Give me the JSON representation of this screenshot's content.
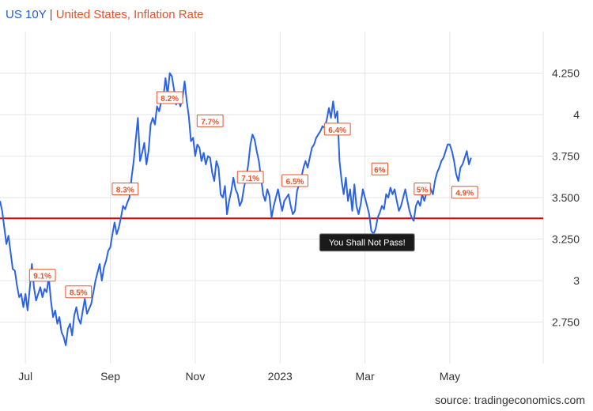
{
  "header": {
    "series_label": "US 10Y",
    "separator": "|",
    "compare_label": "United States, Inflation Rate"
  },
  "footer": {
    "source": "source: tradingeconomics.com"
  },
  "colors": {
    "line": "#2a62e8",
    "threshold": "#dd0000",
    "label_text": "#e8502a",
    "label_border": "#e8502a",
    "annotation_bg": "#1a1a1a",
    "grid": "#e6e6e6"
  },
  "chart_data": {
    "type": "line",
    "title": "US 10Y | United States, Inflation Rate",
    "x_ticks": [
      {
        "label": "Jul",
        "x": 6.5
      },
      {
        "label": "Sep",
        "x": 8.5
      },
      {
        "label": "Nov",
        "x": 10.5
      },
      {
        "label": "2023",
        "x": 12.5
      },
      {
        "label": "Mar",
        "x": 14.5
      },
      {
        "label": "May",
        "x": 16.5
      }
    ],
    "xlim": [
      5.9,
      18.7
    ],
    "ylim": [
      2.5,
      4.5
    ],
    "y_ticks": [
      "4.250",
      "4",
      "3.750",
      "3.500",
      "3.250",
      "3",
      "2.750"
    ],
    "threshold": 3.375,
    "annotation": {
      "text": "You Shall Not Pass!",
      "x": 14.55,
      "y": 3.23
    },
    "inflation_labels": [
      {
        "text": "9.1%",
        "x": 6.9,
        "y": 3.03
      },
      {
        "text": "8.5%",
        "x": 7.75,
        "y": 2.93
      },
      {
        "text": "8.3%",
        "x": 8.85,
        "y": 3.55
      },
      {
        "text": "8.2%",
        "x": 9.9,
        "y": 4.1
      },
      {
        "text": "7.7%",
        "x": 10.85,
        "y": 3.96
      },
      {
        "text": "7.1%",
        "x": 11.8,
        "y": 3.62
      },
      {
        "text": "6.5%",
        "x": 12.85,
        "y": 3.6
      },
      {
        "text": "6.4%",
        "x": 13.85,
        "y": 3.91
      },
      {
        "text": "6%",
        "x": 14.85,
        "y": 3.67
      },
      {
        "text": "5%",
        "x": 15.85,
        "y": 3.55
      },
      {
        "text": "4.9%",
        "x": 16.85,
        "y": 3.53
      }
    ],
    "series": [
      {
        "name": "US 10Y",
        "points": [
          [
            5.9,
            3.48
          ],
          [
            5.95,
            3.42
          ],
          [
            6.0,
            3.32
          ],
          [
            6.05,
            3.22
          ],
          [
            6.1,
            3.27
          ],
          [
            6.15,
            3.17
          ],
          [
            6.2,
            3.07
          ],
          [
            6.25,
            3.06
          ],
          [
            6.3,
            2.97
          ],
          [
            6.35,
            2.9
          ],
          [
            6.4,
            2.92
          ],
          [
            6.45,
            2.84
          ],
          [
            6.5,
            2.92
          ],
          [
            6.55,
            2.82
          ],
          [
            6.6,
            2.95
          ],
          [
            6.65,
            3.1
          ],
          [
            6.7,
            2.96
          ],
          [
            6.75,
            2.88
          ],
          [
            6.8,
            2.92
          ],
          [
            6.85,
            2.96
          ],
          [
            6.9,
            2.9
          ],
          [
            6.95,
            2.95
          ],
          [
            7.0,
            2.93
          ],
          [
            7.05,
            3.02
          ],
          [
            7.1,
            2.88
          ],
          [
            7.15,
            2.78
          ],
          [
            7.2,
            2.82
          ],
          [
            7.25,
            2.74
          ],
          [
            7.3,
            2.78
          ],
          [
            7.35,
            2.69
          ],
          [
            7.4,
            2.66
          ],
          [
            7.45,
            2.61
          ],
          [
            7.5,
            2.71
          ],
          [
            7.55,
            2.74
          ],
          [
            7.6,
            2.67
          ],
          [
            7.65,
            2.79
          ],
          [
            7.7,
            2.84
          ],
          [
            7.75,
            2.77
          ],
          [
            7.8,
            2.74
          ],
          [
            7.85,
            2.82
          ],
          [
            7.9,
            2.89
          ],
          [
            7.95,
            2.8
          ],
          [
            8.0,
            2.83
          ],
          [
            8.05,
            2.86
          ],
          [
            8.1,
            2.93
          ],
          [
            8.15,
            3.0
          ],
          [
            8.2,
            3.05
          ],
          [
            8.25,
            3.1
          ],
          [
            8.3,
            3.0
          ],
          [
            8.35,
            3.08
          ],
          [
            8.4,
            3.12
          ],
          [
            8.45,
            3.18
          ],
          [
            8.5,
            3.2
          ],
          [
            8.55,
            3.28
          ],
          [
            8.6,
            3.35
          ],
          [
            8.65,
            3.28
          ],
          [
            8.7,
            3.32
          ],
          [
            8.75,
            3.38
          ],
          [
            8.8,
            3.45
          ],
          [
            8.85,
            3.43
          ],
          [
            8.9,
            3.47
          ],
          [
            8.95,
            3.5
          ],
          [
            9.0,
            3.62
          ],
          [
            9.05,
            3.72
          ],
          [
            9.1,
            3.85
          ],
          [
            9.15,
            3.98
          ],
          [
            9.2,
            3.72
          ],
          [
            9.25,
            3.77
          ],
          [
            9.3,
            3.83
          ],
          [
            9.35,
            3.7
          ],
          [
            9.4,
            3.78
          ],
          [
            9.45,
            3.94
          ],
          [
            9.5,
            3.98
          ],
          [
            9.55,
            3.94
          ],
          [
            9.6,
            4.05
          ],
          [
            9.65,
            4.02
          ],
          [
            9.7,
            4.08
          ],
          [
            9.75,
            4.1
          ],
          [
            9.8,
            4.22
          ],
          [
            9.85,
            4.12
          ],
          [
            9.9,
            4.25
          ],
          [
            9.95,
            4.23
          ],
          [
            10.0,
            4.15
          ],
          [
            10.05,
            4.06
          ],
          [
            10.1,
            4.1
          ],
          [
            10.15,
            4.05
          ],
          [
            10.2,
            4.1
          ],
          [
            10.25,
            4.2
          ],
          [
            10.3,
            4.08
          ],
          [
            10.35,
            3.99
          ],
          [
            10.4,
            3.84
          ],
          [
            10.45,
            3.86
          ],
          [
            10.5,
            3.75
          ],
          [
            10.55,
            3.82
          ],
          [
            10.6,
            3.8
          ],
          [
            10.65,
            3.72
          ],
          [
            10.7,
            3.77
          ],
          [
            10.75,
            3.7
          ],
          [
            10.8,
            3.75
          ],
          [
            10.85,
            3.74
          ],
          [
            10.9,
            3.65
          ],
          [
            10.95,
            3.6
          ],
          [
            11.0,
            3.72
          ],
          [
            11.05,
            3.68
          ],
          [
            11.1,
            3.52
          ],
          [
            11.15,
            3.5
          ],
          [
            11.2,
            3.57
          ],
          [
            11.25,
            3.4
          ],
          [
            11.3,
            3.48
          ],
          [
            11.35,
            3.54
          ],
          [
            11.4,
            3.62
          ],
          [
            11.45,
            3.55
          ],
          [
            11.5,
            3.52
          ],
          [
            11.55,
            3.45
          ],
          [
            11.6,
            3.48
          ],
          [
            11.65,
            3.56
          ],
          [
            11.7,
            3.62
          ],
          [
            11.75,
            3.7
          ],
          [
            11.8,
            3.82
          ],
          [
            11.85,
            3.88
          ],
          [
            11.9,
            3.85
          ],
          [
            11.95,
            3.78
          ],
          [
            12.0,
            3.72
          ],
          [
            12.05,
            3.62
          ],
          [
            12.1,
            3.52
          ],
          [
            12.15,
            3.48
          ],
          [
            12.2,
            3.55
          ],
          [
            12.25,
            3.51
          ],
          [
            12.3,
            3.38
          ],
          [
            12.35,
            3.45
          ],
          [
            12.4,
            3.5
          ],
          [
            12.45,
            3.55
          ],
          [
            12.5,
            3.48
          ],
          [
            12.55,
            3.42
          ],
          [
            12.6,
            3.48
          ],
          [
            12.65,
            3.5
          ],
          [
            12.7,
            3.52
          ],
          [
            12.75,
            3.45
          ],
          [
            12.8,
            3.4
          ],
          [
            12.85,
            3.42
          ],
          [
            12.9,
            3.54
          ],
          [
            12.95,
            3.58
          ],
          [
            13.0,
            3.62
          ],
          [
            13.05,
            3.68
          ],
          [
            13.1,
            3.72
          ],
          [
            13.15,
            3.68
          ],
          [
            13.2,
            3.74
          ],
          [
            13.25,
            3.8
          ],
          [
            13.3,
            3.82
          ],
          [
            13.35,
            3.86
          ],
          [
            13.4,
            3.88
          ],
          [
            13.45,
            3.9
          ],
          [
            13.5,
            3.93
          ],
          [
            13.55,
            3.92
          ],
          [
            13.6,
            3.97
          ],
          [
            13.65,
            4.04
          ],
          [
            13.7,
            3.98
          ],
          [
            13.75,
            4.08
          ],
          [
            13.8,
            3.98
          ],
          [
            13.85,
            4.02
          ],
          [
            13.9,
            3.72
          ],
          [
            13.95,
            3.6
          ],
          [
            14.0,
            3.52
          ],
          [
            14.05,
            3.62
          ],
          [
            14.1,
            3.48
          ],
          [
            14.15,
            3.55
          ],
          [
            14.2,
            3.42
          ],
          [
            14.25,
            3.58
          ],
          [
            14.3,
            3.45
          ],
          [
            14.35,
            3.4
          ],
          [
            14.4,
            3.46
          ],
          [
            14.45,
            3.55
          ],
          [
            14.5,
            3.5
          ],
          [
            14.55,
            3.45
          ],
          [
            14.6,
            3.4
          ],
          [
            14.65,
            3.3
          ],
          [
            14.7,
            3.28
          ],
          [
            14.75,
            3.31
          ],
          [
            14.8,
            3.38
          ],
          [
            14.85,
            3.41
          ],
          [
            14.9,
            3.45
          ],
          [
            14.95,
            3.43
          ],
          [
            15.0,
            3.52
          ],
          [
            15.05,
            3.5
          ],
          [
            15.1,
            3.56
          ],
          [
            15.15,
            3.52
          ],
          [
            15.2,
            3.55
          ],
          [
            15.25,
            3.48
          ],
          [
            15.3,
            3.42
          ],
          [
            15.35,
            3.45
          ],
          [
            15.4,
            3.5
          ],
          [
            15.45,
            3.55
          ],
          [
            15.5,
            3.48
          ],
          [
            15.55,
            3.42
          ],
          [
            15.6,
            3.38
          ],
          [
            15.65,
            3.36
          ],
          [
            15.7,
            3.45
          ],
          [
            15.75,
            3.48
          ],
          [
            15.8,
            3.45
          ],
          [
            15.85,
            3.52
          ],
          [
            15.9,
            3.48
          ],
          [
            15.95,
            3.53
          ],
          [
            16.0,
            3.58
          ],
          [
            16.05,
            3.55
          ],
          [
            16.1,
            3.52
          ],
          [
            16.15,
            3.6
          ],
          [
            16.2,
            3.65
          ],
          [
            16.25,
            3.68
          ],
          [
            16.3,
            3.72
          ],
          [
            16.35,
            3.74
          ],
          [
            16.4,
            3.78
          ],
          [
            16.45,
            3.82
          ],
          [
            16.5,
            3.82
          ],
          [
            16.55,
            3.78
          ],
          [
            16.6,
            3.72
          ],
          [
            16.65,
            3.64
          ],
          [
            16.7,
            3.6
          ],
          [
            16.75,
            3.68
          ],
          [
            16.8,
            3.7
          ],
          [
            16.85,
            3.74
          ],
          [
            16.9,
            3.78
          ],
          [
            16.95,
            3.7
          ],
          [
            17.0,
            3.74
          ]
        ]
      }
    ]
  }
}
